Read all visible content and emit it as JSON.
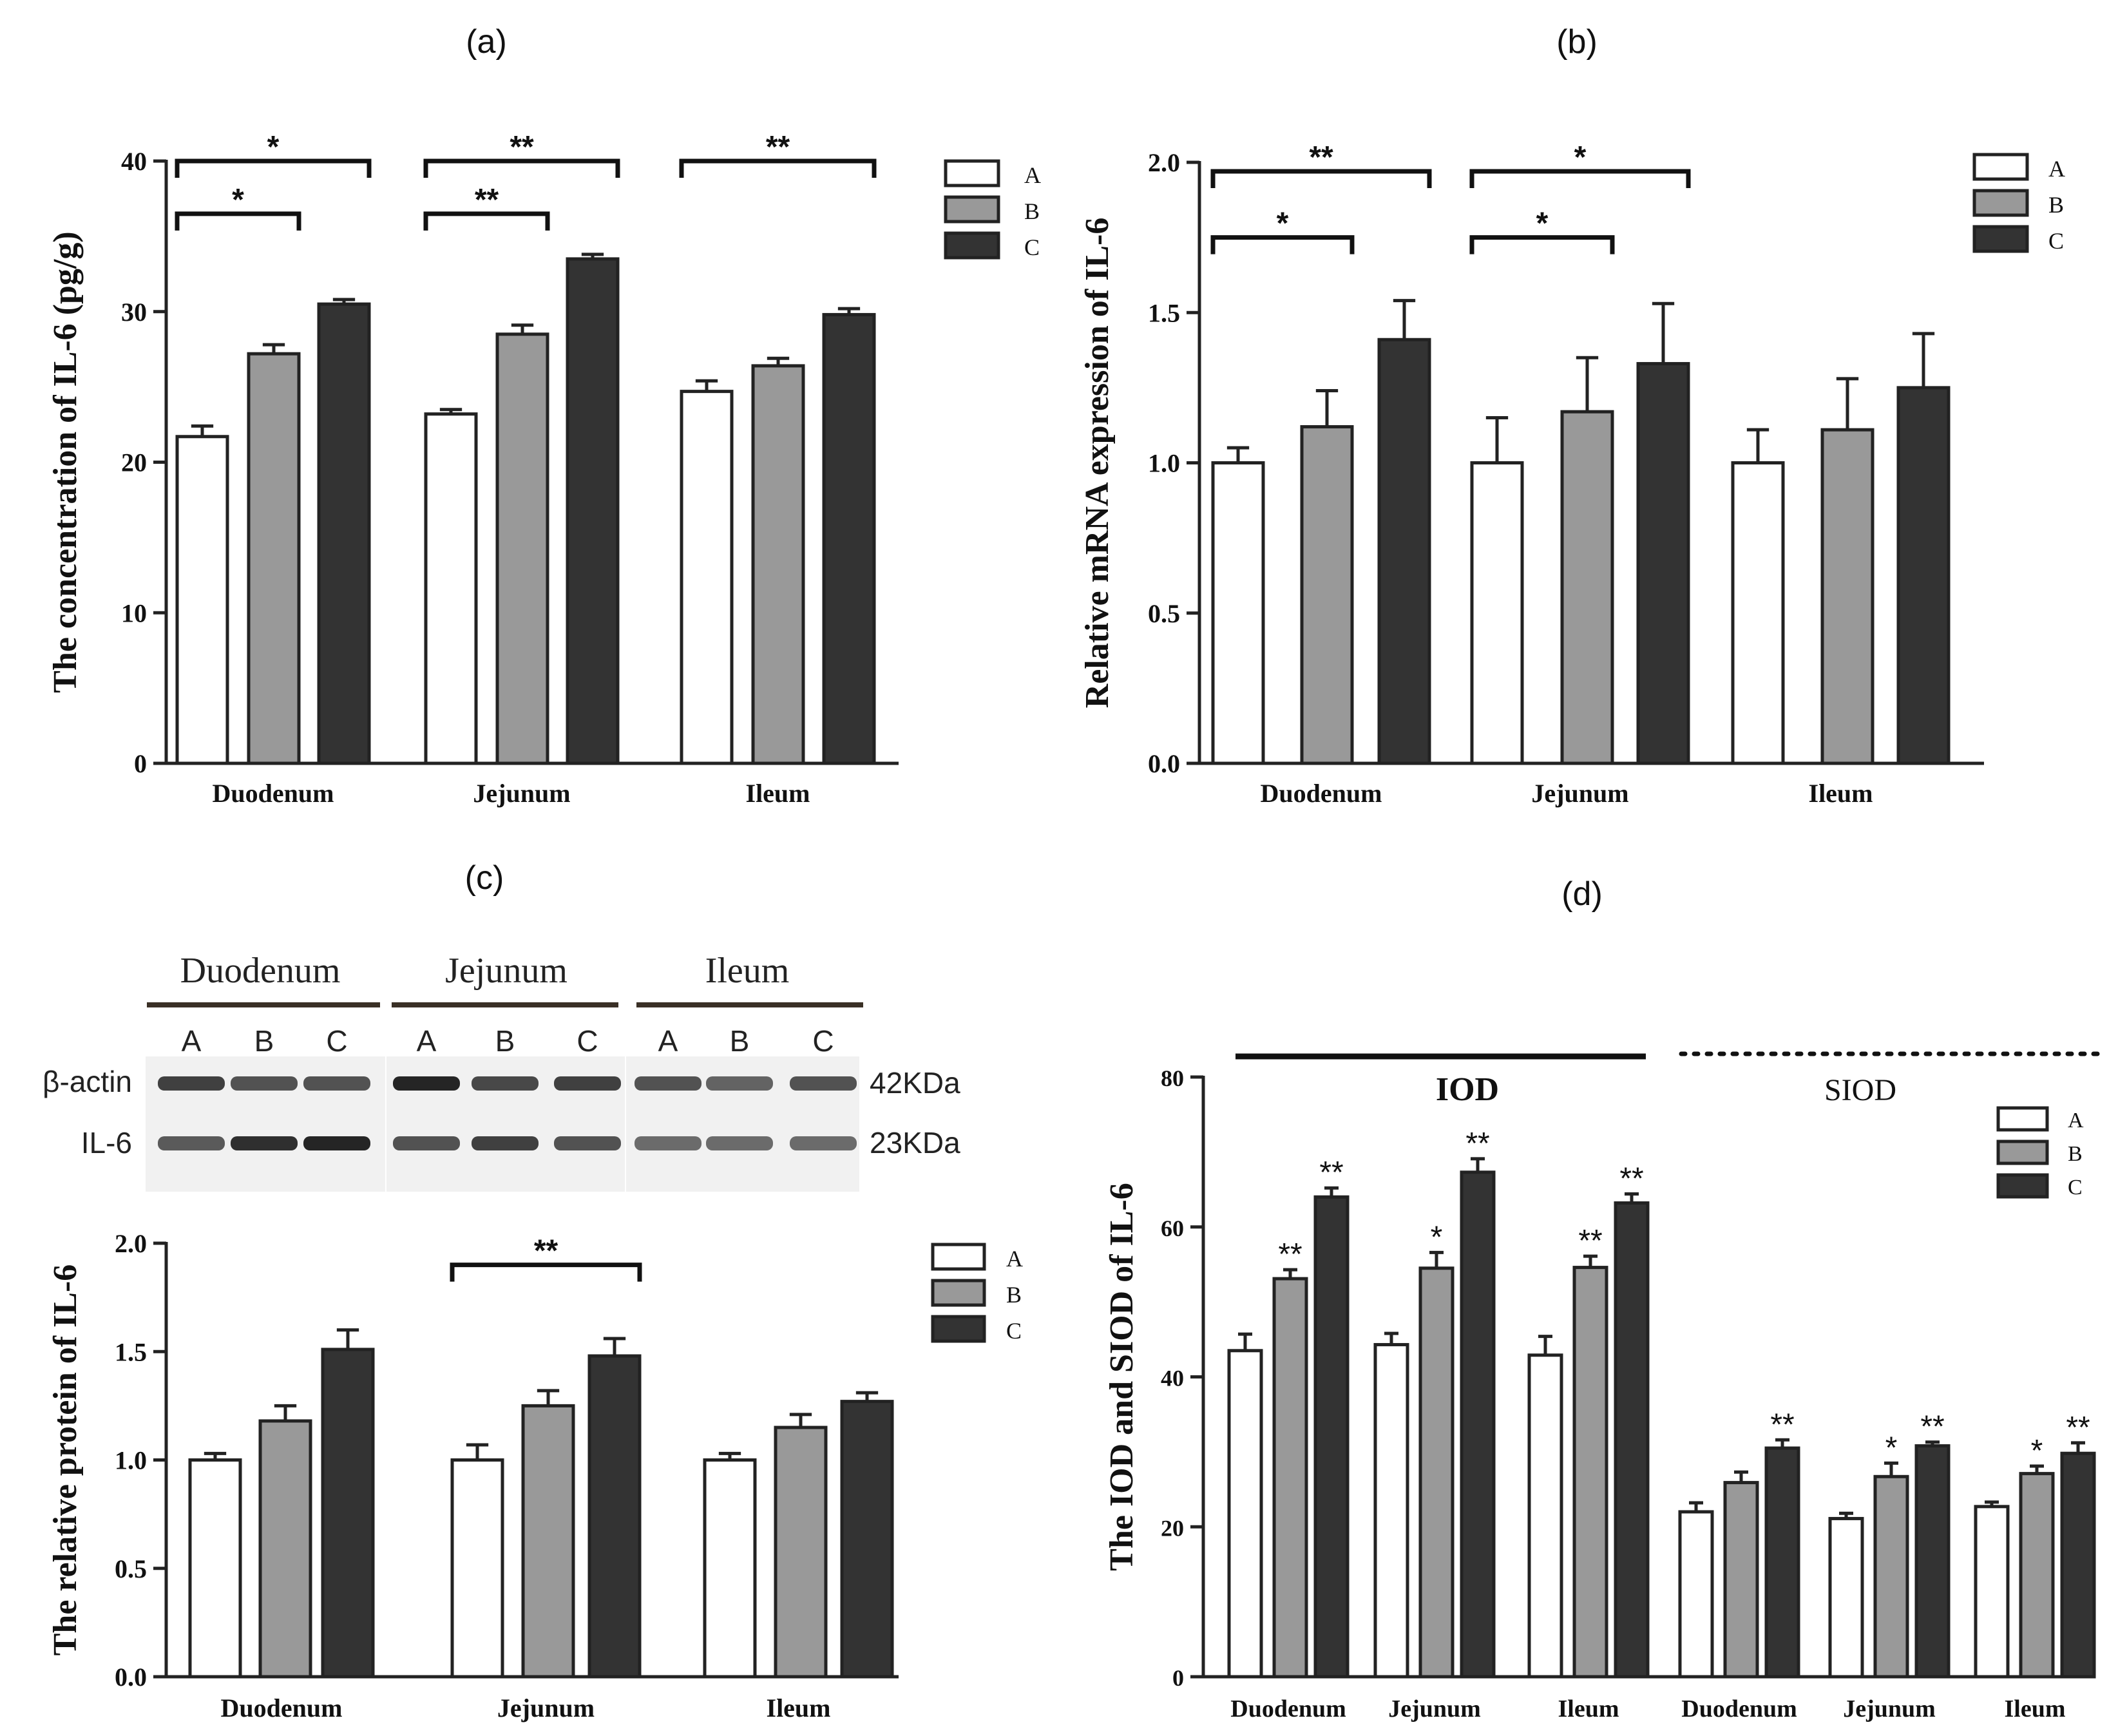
{
  "colors": {
    "A": "#ffffff",
    "B": "#999999",
    "C": "#333333",
    "stroke": "#222222"
  },
  "chart_data": [
    {
      "panel": "(a)",
      "type": "bar",
      "ylabel": "The concentration of IL-6 (pg/g)",
      "categories": [
        "Duodenum",
        "Jejunum",
        "Ileum"
      ],
      "ylim": [
        0,
        40
      ],
      "yticks": [
        "0",
        "10",
        "20",
        "30",
        "40"
      ],
      "legend": [
        "A",
        "B",
        "C"
      ],
      "series": [
        {
          "name": "A",
          "values": [
            21.7,
            23.2,
            24.7
          ],
          "errors": [
            0.7,
            0.3,
            0.7
          ]
        },
        {
          "name": "B",
          "values": [
            27.2,
            28.5,
            26.4
          ],
          "errors": [
            0.6,
            0.6,
            0.5
          ]
        },
        {
          "name": "C",
          "values": [
            30.5,
            33.5,
            29.8
          ],
          "errors": [
            0.3,
            0.3,
            0.4
          ]
        }
      ],
      "brackets": [
        {
          "group": 0,
          "from": "A",
          "to": "C",
          "level": 40.0,
          "label": "*"
        },
        {
          "group": 0,
          "from": "A",
          "to": "B",
          "level": 36.5,
          "label": "*"
        },
        {
          "group": 1,
          "from": "A",
          "to": "C",
          "level": 40.0,
          "label": "**"
        },
        {
          "group": 1,
          "from": "A",
          "to": "B",
          "level": 36.5,
          "label": "**"
        },
        {
          "group": 2,
          "from": "A",
          "to": "C",
          "level": 40.0,
          "label": "**"
        }
      ]
    },
    {
      "panel": "(b)",
      "type": "bar",
      "ylabel": "Relative mRNA expression of IL-6",
      "categories": [
        "Duodenum",
        "Jejunum",
        "Ileum"
      ],
      "ylim": [
        0,
        2.0
      ],
      "yticks": [
        "0.0",
        "0.5",
        "1.0",
        "1.5",
        "2.0"
      ],
      "legend": [
        "A",
        "B",
        "C"
      ],
      "series": [
        {
          "name": "A",
          "values": [
            1.0,
            1.0,
            1.0
          ],
          "errors": [
            0.05,
            0.15,
            0.11
          ]
        },
        {
          "name": "B",
          "values": [
            1.12,
            1.17,
            1.11
          ],
          "errors": [
            0.12,
            0.18,
            0.17
          ]
        },
        {
          "name": "C",
          "values": [
            1.41,
            1.33,
            1.25
          ],
          "errors": [
            0.13,
            0.2,
            0.18
          ]
        }
      ],
      "brackets": [
        {
          "group": 0,
          "from": "A",
          "to": "C",
          "level": 1.97,
          "label": "**"
        },
        {
          "group": 0,
          "from": "A",
          "to": "B",
          "level": 1.75,
          "label": "*"
        },
        {
          "group": 1,
          "from": "A",
          "to": "C",
          "level": 1.97,
          "label": "*"
        },
        {
          "group": 1,
          "from": "A",
          "to": "B",
          "level": 1.75,
          "label": "*"
        }
      ]
    },
    {
      "panel": "(c)",
      "type": "bar",
      "ylabel": "The relative protein of IL-6",
      "categories": [
        "Duodenum",
        "Jejunum",
        "Ileum"
      ],
      "ylim": [
        0,
        2.0
      ],
      "yticks": [
        "0.0",
        "0.5",
        "1.0",
        "1.5",
        "2.0"
      ],
      "legend": [
        "A",
        "B",
        "C"
      ],
      "series": [
        {
          "name": "A",
          "values": [
            1.0,
            1.0,
            1.0
          ],
          "errors": [
            0.03,
            0.07,
            0.03
          ]
        },
        {
          "name": "B",
          "values": [
            1.18,
            1.25,
            1.15
          ],
          "errors": [
            0.07,
            0.07,
            0.06
          ]
        },
        {
          "name": "C",
          "values": [
            1.51,
            1.48,
            1.27
          ],
          "errors": [
            0.09,
            0.08,
            0.04
          ]
        }
      ],
      "brackets": [
        {
          "group": 1,
          "from": "A",
          "to": "C",
          "level": 1.9,
          "label": "**"
        }
      ]
    },
    {
      "panel": "(d)",
      "type": "bar",
      "ylabel": "The IOD and SIOD of IL-6",
      "categories": [
        "Duodenum",
        "Jejunum",
        "Ileum",
        "Duodenum",
        "Jejunum",
        "Ileum"
      ],
      "sections": [
        {
          "label": "IOD",
          "groups": [
            0,
            1,
            2
          ],
          "line": "solid"
        },
        {
          "label": "SIOD",
          "groups": [
            3,
            4,
            5
          ],
          "line": "dotted"
        }
      ],
      "ylim": [
        0,
        80
      ],
      "yticks": [
        "0",
        "20",
        "40",
        "60",
        "80"
      ],
      "legend": [
        "A",
        "B",
        "C"
      ],
      "series": [
        {
          "name": "A",
          "values": [
            43.5,
            44.3,
            42.9,
            22.0,
            21.1,
            22.7
          ],
          "errors": [
            2.2,
            1.5,
            2.5,
            1.2,
            0.7,
            0.6
          ]
        },
        {
          "name": "B",
          "values": [
            53.1,
            54.5,
            54.6,
            25.9,
            26.7,
            27.1
          ],
          "errors": [
            1.2,
            2.1,
            1.5,
            1.4,
            1.8,
            1.0
          ]
        },
        {
          "name": "C",
          "values": [
            64.0,
            67.3,
            63.2,
            30.5,
            30.8,
            29.8
          ],
          "errors": [
            1.2,
            1.8,
            1.2,
            1.1,
            0.5,
            1.4
          ]
        }
      ],
      "stars": {
        "B": [
          "**",
          "*",
          "**",
          "",
          "*",
          "*"
        ],
        "C": [
          "**",
          "**",
          "**",
          "**",
          "**",
          "**"
        ]
      }
    }
  ],
  "blot": {
    "tissues": [
      "Duodenum",
      "Jejunum",
      "Ileum"
    ],
    "lanes": [
      "A",
      "B",
      "C",
      "A",
      "B",
      "C",
      "A",
      "B",
      "C"
    ],
    "bands": [
      {
        "label": "β-actin",
        "size": "42KDa",
        "intensity": [
          0.85,
          0.75,
          0.75,
          1.0,
          0.8,
          0.85,
          0.75,
          0.65,
          0.75
        ]
      },
      {
        "label": "IL-6",
        "size": "23KDa",
        "intensity": [
          0.7,
          0.95,
          1.0,
          0.75,
          0.85,
          0.75,
          0.6,
          0.6,
          0.6
        ]
      }
    ]
  }
}
